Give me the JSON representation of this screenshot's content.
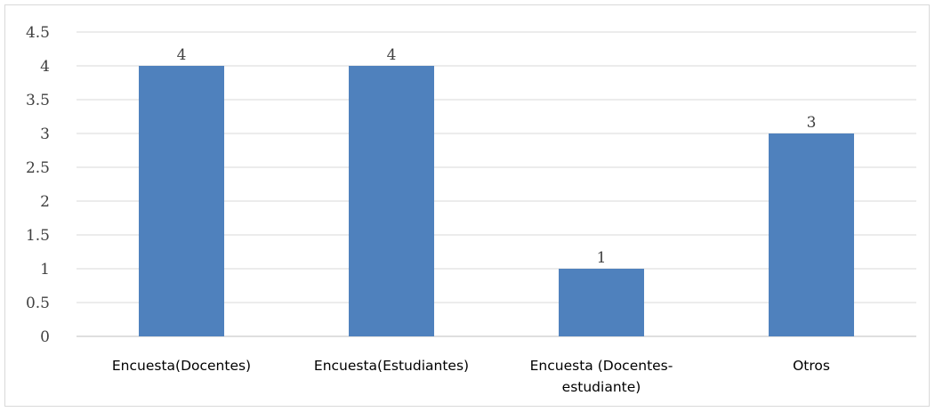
{
  "chart_data": {
    "type": "bar",
    "categories": [
      [
        "Encuesta(Docentes)"
      ],
      [
        "Encuesta(Estudiantes)"
      ],
      [
        "Encuesta (Docentes-",
        "estudiante)"
      ],
      [
        "Otros"
      ]
    ],
    "values": [
      4,
      4,
      1,
      3
    ],
    "data_labels": [
      "4",
      "4",
      "1",
      "3"
    ],
    "yticks": [
      "0",
      "0.5",
      "1",
      "1.5",
      "2",
      "2.5",
      "3",
      "3.5",
      "4",
      "4.5"
    ],
    "ylim": [
      0,
      4.5
    ],
    "title": "",
    "xlabel": "",
    "ylabel": "",
    "grid": true,
    "legend": "none",
    "bar_color": "#4f81bd"
  }
}
